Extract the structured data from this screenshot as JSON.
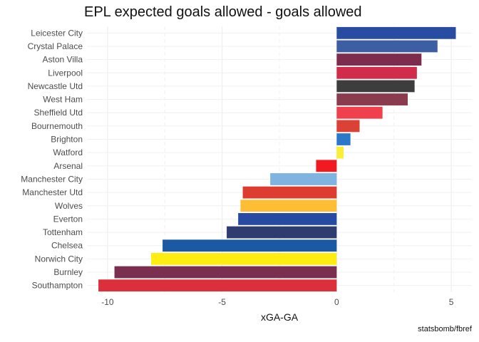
{
  "chart_data": {
    "type": "bar",
    "orientation": "horizontal",
    "title": "EPL expected goals allowed - goals allowed",
    "xlabel": "xGA-GA",
    "ylabel": "",
    "caption": "statsbomb/fbref",
    "xlim": [
      -10.9,
      5.9
    ],
    "xticks": [
      -10,
      -5,
      0,
      5
    ],
    "xtick_labels": [
      "-10",
      "-5",
      "0",
      "5"
    ],
    "grid": true,
    "categories": [
      "Leicester City",
      "Crystal Palace",
      "Aston Villa",
      "Liverpool",
      "Newcastle Utd",
      "West Ham",
      "Sheffield Utd",
      "Bournemouth",
      "Brighton",
      "Watford",
      "Arsenal",
      "Manchester City",
      "Manchester Utd",
      "Wolves",
      "Everton",
      "Tottenham",
      "Chelsea",
      "Norwich City",
      "Burnley",
      "Southampton"
    ],
    "values": [
      5.2,
      4.4,
      3.7,
      3.5,
      3.4,
      3.1,
      2.0,
      1.0,
      0.6,
      0.3,
      -0.9,
      -2.9,
      -4.1,
      -4.2,
      -4.3,
      -4.8,
      -7.6,
      -8.1,
      -9.7,
      -10.4
    ],
    "colors": [
      "#274ca1",
      "#3d5ea3",
      "#7d2c4e",
      "#d12c4a",
      "#3d3d3d",
      "#8a3c4e",
      "#f0404e",
      "#dc4135",
      "#2b78cb",
      "#fbee37",
      "#f21a21",
      "#7fb3e0",
      "#dd3d31",
      "#fdbe35",
      "#274aa3",
      "#2f3c70",
      "#1b5aa3",
      "#fded10",
      "#7a2e50",
      "#dc2f3c"
    ]
  }
}
